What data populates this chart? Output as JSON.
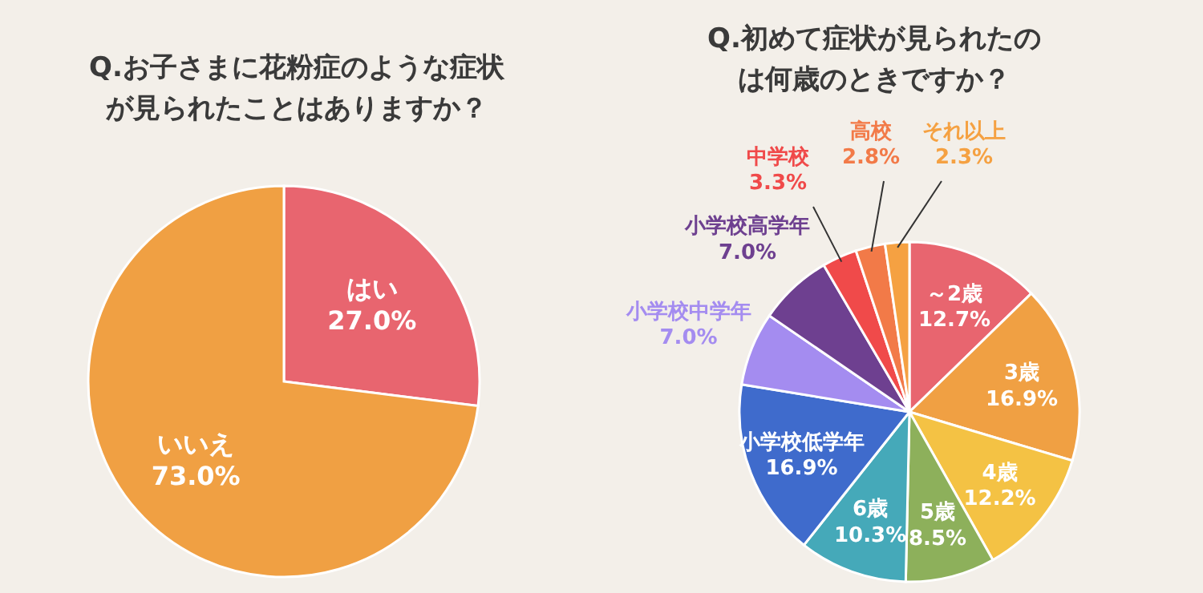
{
  "chart_data": [
    {
      "type": "pie",
      "title": "Q.お子さまに花粉症のような症状が見られたことはありますか？",
      "categories": [
        "はい",
        "いいえ"
      ],
      "values": [
        27.0,
        73.0
      ],
      "value_labels": [
        "27.0%",
        "73.0%"
      ],
      "colors": [
        "#e8656f",
        "#f0a043"
      ]
    },
    {
      "type": "pie",
      "title": "Q.初めて症状が見られたのは何歳のときですか？",
      "categories": [
        "～2歳",
        "3歳",
        "4歳",
        "5歳",
        "6歳",
        "小学校低学年",
        "小学校中学年",
        "小学校高学年",
        "中学校",
        "高校",
        "それ以上"
      ],
      "values": [
        12.7,
        16.9,
        12.2,
        8.5,
        10.3,
        16.9,
        7.0,
        7.0,
        3.3,
        2.8,
        2.3
      ],
      "value_labels": [
        "12.7%",
        "16.9%",
        "12.2%",
        "8.5%",
        "10.3%",
        "16.9%",
        "7.0%",
        "7.0%",
        "3.3%",
        "2.8%",
        "2.3%"
      ],
      "colors": [
        "#e8656f",
        "#f0a043",
        "#f4c244",
        "#8db05b",
        "#45a9b9",
        "#3f6bcc",
        "#a48cf0",
        "#6e4090",
        "#f04a4a",
        "#f27a48",
        "#f5a142"
      ]
    }
  ]
}
